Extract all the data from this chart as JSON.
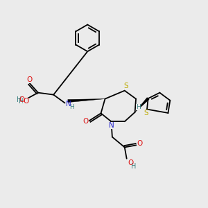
{
  "bg_color": "#ebebeb",
  "atom_colors": {
    "C": "#000000",
    "N": "#2222cc",
    "O": "#dd1111",
    "S": "#bbaa00",
    "H": "#3a8080"
  },
  "bond_lw": 1.3,
  "font_size": 7.5
}
